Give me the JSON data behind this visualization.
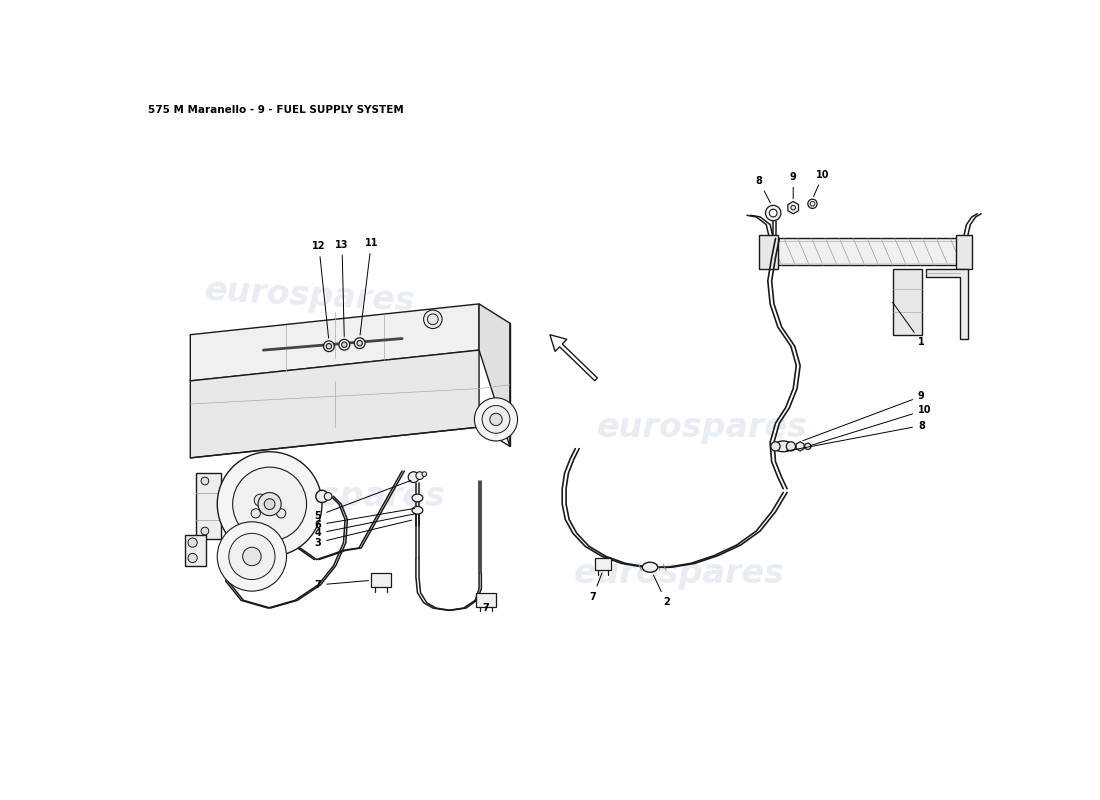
{
  "title": "575 M Maranello - 9 - FUEL SUPPLY SYSTEM",
  "title_fontsize": 7.5,
  "bg_color": "#ffffff",
  "line_color": "#1a1a1a",
  "wm_color": "#c5d0e0",
  "wm_text": "eurospares",
  "wm_size": 24,
  "wm_alpha": 0.38
}
